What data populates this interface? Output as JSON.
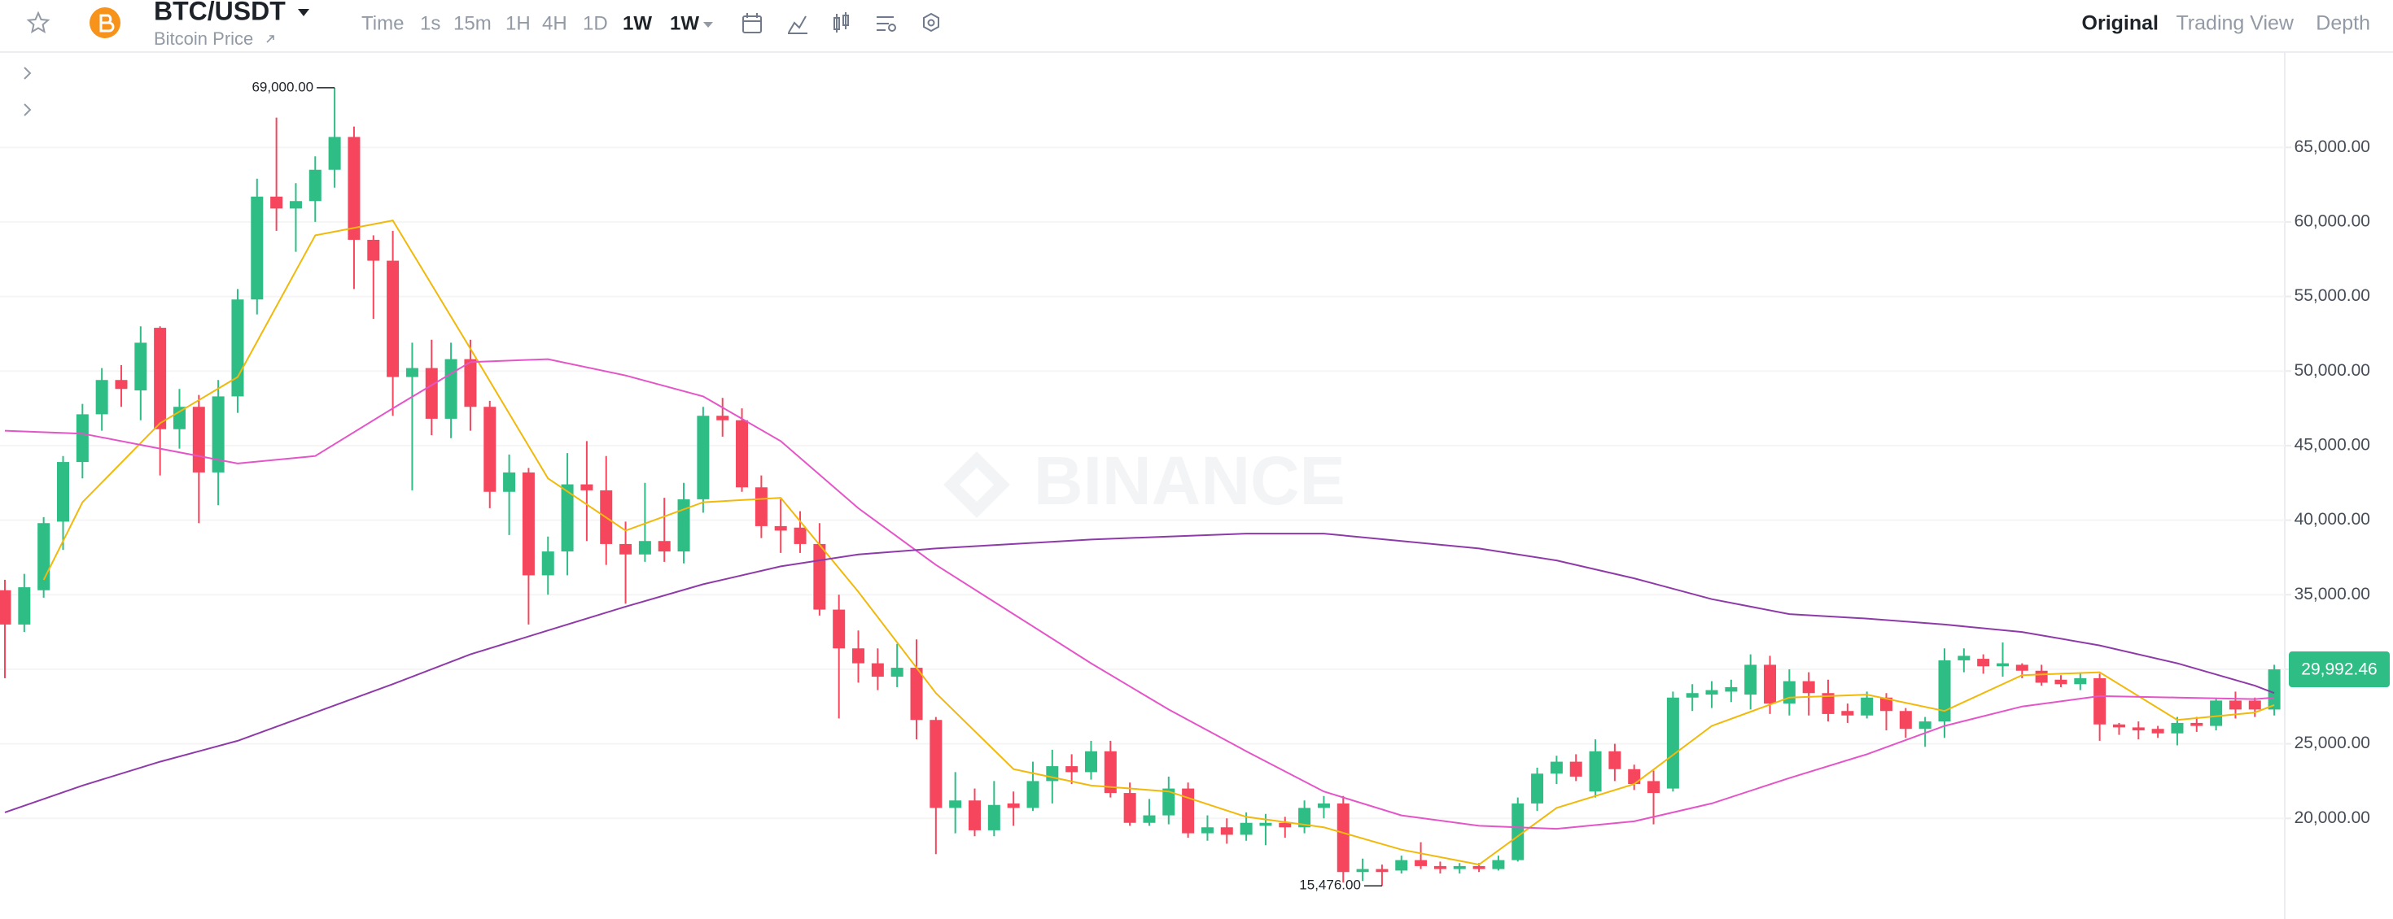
{
  "header": {
    "symbol": "BTC/USDT",
    "subtitle": "Bitcoin Price",
    "intervals": [
      "Time",
      "1s",
      "15m",
      "1H",
      "4H",
      "1D",
      "1W"
    ],
    "interval_dropdown": "1W",
    "views": [
      "Original",
      "Trading View",
      "Depth"
    ]
  },
  "watermark": "BINANCE",
  "chart_data": {
    "type": "candlestick",
    "up_color": "#2ebd85",
    "down_color": "#f6465d",
    "ylim": [
      13250,
      71340
    ],
    "yticks": [
      {
        "value": 20000,
        "label": "20,000.00"
      },
      {
        "value": 25000,
        "label": "25,000.00"
      },
      {
        "value": 30000,
        "label": "30,000.00"
      },
      {
        "value": 35000,
        "label": "35,000.00"
      },
      {
        "value": 40000,
        "label": "40,000.00"
      },
      {
        "value": 45000,
        "label": "45,000.00"
      },
      {
        "value": 50000,
        "label": "50,000.00"
      },
      {
        "value": 55000,
        "label": "55,000.00"
      },
      {
        "value": 60000,
        "label": "60,000.00"
      },
      {
        "value": 65000,
        "label": "65,000.00"
      }
    ],
    "grid": true,
    "candles": [
      [
        35300,
        36000,
        29400,
        33000
      ],
      [
        33000,
        36400,
        32500,
        35500
      ],
      [
        35300,
        40200,
        34800,
        39800
      ],
      [
        39900,
        44300,
        38000,
        43900
      ],
      [
        43900,
        47800,
        42800,
        47100
      ],
      [
        47100,
        50200,
        46000,
        49400
      ],
      [
        49400,
        50400,
        47600,
        48800
      ],
      [
        48700,
        53000,
        46700,
        51900
      ],
      [
        52900,
        53000,
        43000,
        46100
      ],
      [
        46100,
        48800,
        44800,
        47600
      ],
      [
        47600,
        48400,
        39800,
        43200
      ],
      [
        43200,
        49400,
        41000,
        48300
      ],
      [
        48300,
        55500,
        47200,
        54800
      ],
      [
        54800,
        62900,
        53800,
        61700
      ],
      [
        61700,
        67000,
        59400,
        60900
      ],
      [
        60900,
        62600,
        58000,
        61400
      ],
      [
        61400,
        64400,
        60000,
        63500
      ],
      [
        63500,
        69000,
        62300,
        65700
      ],
      [
        65700,
        66400,
        55500,
        58800
      ],
      [
        58800,
        59100,
        53500,
        57400
      ],
      [
        57400,
        59400,
        47000,
        49600
      ],
      [
        49600,
        51900,
        42000,
        50200
      ],
      [
        50200,
        52100,
        45700,
        46800
      ],
      [
        46800,
        51900,
        45500,
        50800
      ],
      [
        50800,
        52100,
        46000,
        47600
      ],
      [
        47600,
        48000,
        40800,
        41900
      ],
      [
        41900,
        44400,
        39000,
        43200
      ],
      [
        43200,
        43500,
        33000,
        36300
      ],
      [
        36300,
        38900,
        35000,
        37900
      ],
      [
        37900,
        44500,
        36300,
        42400
      ],
      [
        42400,
        45300,
        38600,
        42000
      ],
      [
        42000,
        44300,
        37000,
        38400
      ],
      [
        38400,
        39900,
        34400,
        37700
      ],
      [
        37700,
        42500,
        37200,
        38600
      ],
      [
        38600,
        41500,
        37200,
        37900
      ],
      [
        37900,
        42500,
        37100,
        41400
      ],
      [
        41400,
        47600,
        40500,
        47000
      ],
      [
        47000,
        48200,
        45600,
        46700
      ],
      [
        46700,
        47500,
        41900,
        42200
      ],
      [
        42200,
        43000,
        38800,
        39600
      ],
      [
        39600,
        41400,
        37800,
        39300
      ],
      [
        39500,
        40600,
        37800,
        38400
      ],
      [
        38400,
        39800,
        33600,
        34000
      ],
      [
        34000,
        35000,
        26700,
        31400
      ],
      [
        31400,
        32600,
        29100,
        30400
      ],
      [
        30400,
        31400,
        28600,
        29500
      ],
      [
        29500,
        31700,
        28800,
        30100
      ],
      [
        30100,
        32000,
        25300,
        26600
      ],
      [
        26600,
        26800,
        17600,
        20700
      ],
      [
        20700,
        23100,
        19000,
        21200
      ],
      [
        21200,
        22000,
        18800,
        19200
      ],
      [
        19200,
        22500,
        18800,
        20900
      ],
      [
        21000,
        21800,
        19500,
        20700
      ],
      [
        20700,
        23800,
        20500,
        22500
      ],
      [
        22500,
        24600,
        21000,
        23500
      ],
      [
        23500,
        24300,
        22300,
        23100
      ],
      [
        23100,
        25200,
        22600,
        24500
      ],
      [
        24500,
        25200,
        21400,
        21700
      ],
      [
        21700,
        22400,
        19500,
        19700
      ],
      [
        19700,
        21300,
        19500,
        20200
      ],
      [
        20200,
        22800,
        19600,
        22000
      ],
      [
        22000,
        22400,
        18700,
        19000
      ],
      [
        19000,
        20200,
        18500,
        19400
      ],
      [
        19400,
        20000,
        18300,
        18900
      ],
      [
        18900,
        20400,
        18500,
        19700
      ],
      [
        19500,
        20300,
        18200,
        19700
      ],
      [
        19700,
        20100,
        18700,
        19400
      ],
      [
        19400,
        21200,
        19000,
        20700
      ],
      [
        20700,
        21500,
        20000,
        21000
      ],
      [
        21000,
        21500,
        15700,
        16400
      ],
      [
        16400,
        17300,
        15800,
        16600
      ],
      [
        16600,
        16900,
        15476,
        16400
      ],
      [
        16500,
        17500,
        16300,
        17200
      ],
      [
        17200,
        18400,
        16600,
        16800
      ],
      [
        16800,
        17100,
        16300,
        16600
      ],
      [
        16600,
        17000,
        16300,
        16800
      ],
      [
        16800,
        17000,
        16400,
        16600
      ],
      [
        16600,
        17500,
        16500,
        17200
      ],
      [
        17200,
        21400,
        17100,
        21000
      ],
      [
        21000,
        23400,
        20500,
        23000
      ],
      [
        23000,
        24200,
        22300,
        23800
      ],
      [
        23800,
        24300,
        22500,
        22800
      ],
      [
        21800,
        25300,
        21400,
        24500
      ],
      [
        24500,
        25000,
        22500,
        23300
      ],
      [
        23300,
        23600,
        21900,
        22300
      ],
      [
        22500,
        23200,
        19600,
        21700
      ],
      [
        22000,
        28500,
        21800,
        28100
      ],
      [
        28100,
        29000,
        27200,
        28400
      ],
      [
        28300,
        29200,
        27400,
        28600
      ],
      [
        28500,
        29300,
        27800,
        28800
      ],
      [
        28300,
        31000,
        27300,
        30300
      ],
      [
        30300,
        30900,
        27000,
        27700
      ],
      [
        27700,
        30000,
        26900,
        29200
      ],
      [
        29200,
        29800,
        26900,
        28400
      ],
      [
        28400,
        29300,
        26500,
        27000
      ],
      [
        27200,
        27700,
        26400,
        26900
      ],
      [
        26900,
        28500,
        26700,
        28100
      ],
      [
        28100,
        28400,
        25900,
        27200
      ],
      [
        27200,
        27400,
        25400,
        26000
      ],
      [
        26000,
        26800,
        24800,
        26500
      ],
      [
        26500,
        31400,
        25400,
        30600
      ],
      [
        30600,
        31400,
        29800,
        30900
      ],
      [
        30700,
        31000,
        29700,
        30200
      ],
      [
        30200,
        31800,
        29500,
        30400
      ],
      [
        30300,
        30400,
        29400,
        29900
      ],
      [
        29900,
        30300,
        28900,
        29100
      ],
      [
        29300,
        29600,
        28800,
        29000
      ],
      [
        29000,
        29800,
        28600,
        29400
      ],
      [
        29400,
        29700,
        25200,
        26300
      ],
      [
        26300,
        26400,
        25600,
        26100
      ],
      [
        26100,
        26500,
        25300,
        25900
      ],
      [
        26000,
        26200,
        25400,
        25700
      ],
      [
        25700,
        26800,
        24900,
        26400
      ],
      [
        26400,
        26800,
        25800,
        26200
      ],
      [
        26200,
        28000,
        25900,
        27900
      ],
      [
        27900,
        28500,
        26700,
        27300
      ],
      [
        27900,
        28100,
        26800,
        27300
      ],
      [
        27300,
        30300,
        26900,
        29992.46
      ]
    ],
    "lines": [
      {
        "color": "#f0b90b",
        "x": [
          2,
          4,
          8,
          12,
          16,
          20,
          24,
          28,
          32,
          36,
          40,
          44,
          48,
          52,
          56,
          60,
          64,
          68,
          72,
          76,
          80,
          84,
          88,
          92,
          96,
          100,
          104,
          108,
          112,
          116,
          117
        ],
        "values": [
          36000,
          41200,
          46500,
          49600,
          59100,
          60100,
          51500,
          42800,
          39300,
          41200,
          41500,
          35200,
          28400,
          23300,
          22200,
          21800,
          20100,
          19400,
          17900,
          16900,
          20700,
          22300,
          26200,
          28100,
          28300,
          27200,
          29600,
          29800,
          26600,
          27100,
          27600
        ]
      },
      {
        "color": "#e455c8",
        "x": [
          0,
          4,
          8,
          12,
          16,
          20,
          24,
          28,
          32,
          36,
          40,
          44,
          48,
          52,
          56,
          60,
          64,
          68,
          72,
          76,
          80,
          84,
          88,
          92,
          96,
          100,
          104,
          108,
          112,
          116,
          117
        ],
        "values": [
          46000,
          45800,
          44800,
          43800,
          44300,
          47500,
          50600,
          50800,
          49700,
          48300,
          45300,
          40800,
          37000,
          33700,
          30400,
          27300,
          24500,
          21800,
          20200,
          19500,
          19300,
          19800,
          21000,
          22700,
          24300,
          26200,
          27500,
          28200,
          28100,
          28000,
          28100
        ]
      },
      {
        "color": "#8e3aa8",
        "x": [
          0,
          4,
          8,
          12,
          16,
          20,
          24,
          28,
          32,
          36,
          40,
          44,
          48,
          52,
          56,
          60,
          64,
          68,
          72,
          76,
          80,
          84,
          88,
          92,
          96,
          100,
          104,
          108,
          112,
          116,
          117
        ],
        "values": [
          20400,
          22200,
          23800,
          25200,
          27100,
          29000,
          31000,
          32600,
          34200,
          35700,
          36900,
          37700,
          38100,
          38400,
          38700,
          38900,
          39100,
          39100,
          38600,
          38100,
          37300,
          36100,
          34700,
          33700,
          33400,
          33000,
          32500,
          31600,
          30400,
          28900,
          28400
        ]
      }
    ],
    "annotations": [
      {
        "value": 69000,
        "label": "69,000.00"
      },
      {
        "value": 15476,
        "label": "15,476.00"
      }
    ],
    "last_price": {
      "value": 29992.46,
      "label": "29,992.46"
    }
  }
}
